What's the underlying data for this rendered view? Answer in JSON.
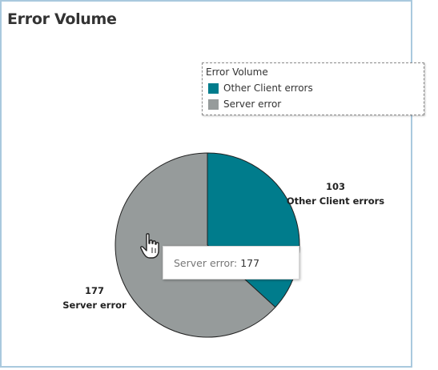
{
  "title": "Error Volume",
  "legend": {
    "title": "Error Volume",
    "items": [
      {
        "label": "Other Client errors",
        "color": "#007c8c"
      },
      {
        "label": "Server error",
        "color": "#969b9b"
      }
    ]
  },
  "chart_data": {
    "type": "pie",
    "title": "Error Volume",
    "slices": [
      {
        "label": "Other Client errors",
        "value": 103,
        "color": "#007c8c"
      },
      {
        "label": "Server error",
        "value": 177,
        "color": "#969b9b"
      }
    ],
    "legend_position": "top-right"
  },
  "tooltip": {
    "key": "Server error:",
    "value": "177"
  }
}
